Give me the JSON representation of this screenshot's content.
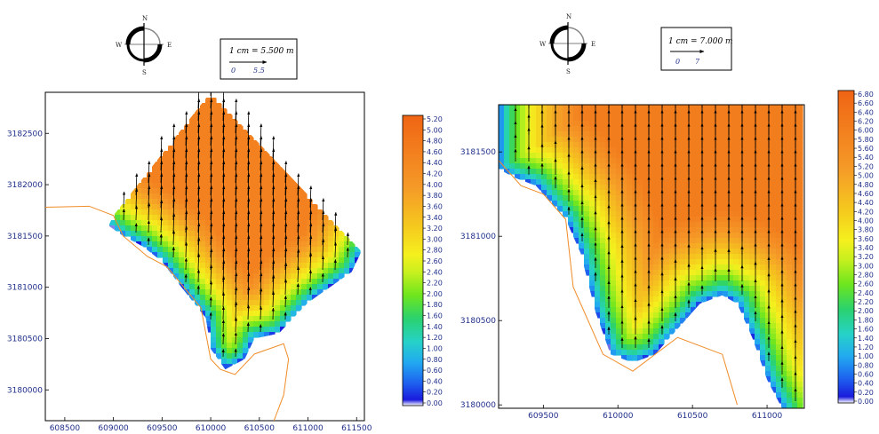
{
  "chart_data": [
    {
      "type": "heatmap",
      "title": "",
      "xlabel": "",
      "ylabel": "",
      "xlim": [
        608300,
        611580
      ],
      "ylim": [
        3179700,
        3182900
      ],
      "x_ticks": [
        "608500",
        "609000",
        "609500",
        "610000",
        "610500",
        "611000",
        "611500"
      ],
      "y_ticks": [
        "3180000",
        "3180500",
        "3181000",
        "3181500",
        "3182000",
        "3182500"
      ],
      "colorbar": {
        "min": 0.0,
        "max": 5.2,
        "labels": [
          "5.20",
          "5.00",
          "4.80",
          "4.60",
          "4.40",
          "4.20",
          "4.00",
          "3.80",
          "3.60",
          "3.40",
          "3.20",
          "3.00",
          "2.80",
          "2.60",
          "2.40",
          "2.20",
          "2.00",
          "1.80",
          "1.60",
          "1.40",
          "1.20",
          "1.00",
          "0.80",
          "0.60",
          "0.40",
          "0.20",
          "0.00"
        ]
      },
      "scale_bar": {
        "text": "1 cm = 5.500 m",
        "labels": [
          "0",
          "5.5"
        ]
      },
      "compass": {
        "n": "N",
        "e": "E",
        "s": "S",
        "w": "W"
      },
      "domain_polygon": [
        [
          609000,
          3181700
        ],
        [
          610000,
          3182900
        ],
        [
          611550,
          3181350
        ],
        [
          611450,
          3181150
        ],
        [
          611000,
          3180850
        ],
        [
          610700,
          3180550
        ],
        [
          610450,
          3180500
        ],
        [
          610350,
          3180300
        ],
        [
          610150,
          3180200
        ],
        [
          610000,
          3180400
        ],
        [
          609950,
          3180700
        ],
        [
          609700,
          3181000
        ],
        [
          609500,
          3181250
        ],
        [
          609300,
          3181400
        ],
        [
          609100,
          3181500
        ],
        [
          608950,
          3181600
        ]
      ],
      "coastline": [
        [
          608300,
          3181780
        ],
        [
          608750,
          3181790
        ],
        [
          609000,
          3181700
        ],
        [
          609100,
          3181500
        ],
        [
          609350,
          3181300
        ],
        [
          609550,
          3181200
        ],
        [
          609900,
          3180800
        ],
        [
          610000,
          3180300
        ],
        [
          610100,
          3180200
        ],
        [
          610250,
          3180150
        ],
        [
          610450,
          3180350
        ],
        [
          610750,
          3180450
        ],
        [
          610800,
          3180300
        ],
        [
          610750,
          3179950
        ],
        [
          610650,
          3179700
        ]
      ],
      "coast_value": 0.0,
      "offshore_value": 4.5,
      "wave_direction_deg": 160
    },
    {
      "type": "heatmap",
      "title": "",
      "xlabel": "",
      "ylabel": "",
      "xlim": [
        609200,
        611250
      ],
      "ylim": [
        3179980,
        3181780
      ],
      "x_ticks": [
        "609500",
        "610000",
        "610500",
        "611000"
      ],
      "y_ticks": [
        "3180000",
        "3180500",
        "3181000",
        "3181500"
      ],
      "colorbar": {
        "min": 0.0,
        "max": 6.8,
        "labels": [
          "6.80",
          "6.60",
          "6.40",
          "6.20",
          "6.00",
          "5.80",
          "5.60",
          "5.40",
          "5.20",
          "5.00",
          "4.80",
          "4.60",
          "4.40",
          "4.20",
          "4.00",
          "3.80",
          "3.60",
          "3.40",
          "3.20",
          "3.00",
          "2.80",
          "2.60",
          "2.40",
          "2.20",
          "2.00",
          "1.80",
          "1.60",
          "1.40",
          "1.20",
          "1.00",
          "0.80",
          "0.60",
          "0.40",
          "0.20",
          "0.00"
        ]
      },
      "scale_bar": {
        "text": "1 cm = 7.000 m",
        "labels": [
          "0",
          "7"
        ]
      },
      "compass": {
        "n": "N",
        "e": "E",
        "s": "S",
        "w": "W"
      },
      "domain_polygon": [
        [
          609200,
          3181780
        ],
        [
          611250,
          3181780
        ],
        [
          611250,
          3179980
        ],
        [
          611100,
          3179980
        ],
        [
          611000,
          3180150
        ],
        [
          610900,
          3180400
        ],
        [
          610800,
          3180600
        ],
        [
          610700,
          3180650
        ],
        [
          610550,
          3180600
        ],
        [
          610400,
          3180450
        ],
        [
          610250,
          3180300
        ],
        [
          610100,
          3180250
        ],
        [
          609950,
          3180300
        ],
        [
          609850,
          3180550
        ],
        [
          609750,
          3180900
        ],
        [
          609650,
          3181100
        ],
        [
          609450,
          3181300
        ],
        [
          609300,
          3181350
        ],
        [
          609200,
          3181400
        ]
      ],
      "coastline": [
        [
          609200,
          3181450
        ],
        [
          609350,
          3181300
        ],
        [
          609500,
          3181250
        ],
        [
          609650,
          3181100
        ],
        [
          609700,
          3180700
        ],
        [
          609900,
          3180300
        ],
        [
          610100,
          3180200
        ],
        [
          610400,
          3180400
        ],
        [
          610700,
          3180300
        ],
        [
          610800,
          3180000
        ]
      ],
      "coast_value": 0.0,
      "offshore_value": 6.0,
      "wave_direction_deg": 180
    }
  ]
}
